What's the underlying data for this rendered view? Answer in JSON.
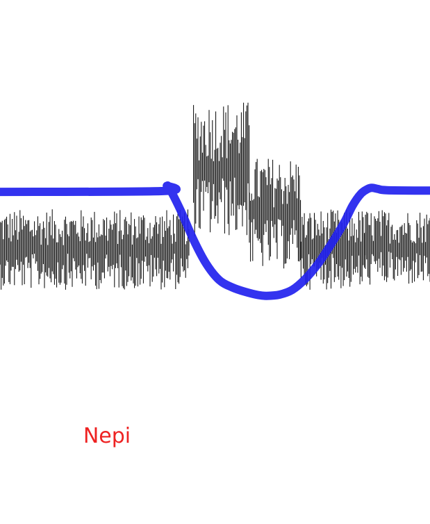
{
  "chart_data": {
    "type": "line",
    "title": "",
    "xlabel": "",
    "ylabel": "",
    "grid": false,
    "legend": "none",
    "annotation": "Nepi",
    "colors": {
      "background": "#ffffff",
      "trace": "#000000",
      "curve": "#2222ee",
      "annotation": "#ee2222"
    },
    "x_range": [
      0,
      100
    ],
    "y_range": [
      0,
      100
    ],
    "series": [
      {
        "style": "dense-vertical-trace",
        "segments": [
          {
            "x": [
              0,
              44
            ],
            "low": 35,
            "high": 55
          },
          {
            "x": [
              45,
              58
            ],
            "low": 48,
            "high": 82
          },
          {
            "x": [
              58,
              70
            ],
            "low": 40,
            "high": 68
          },
          {
            "x": [
              70,
              85
            ],
            "low": 35,
            "high": 55
          },
          {
            "x": [
              85,
              100
            ],
            "low": 36,
            "high": 55
          }
        ]
      },
      {
        "style": "smooth-curve",
        "x": [
          0,
          38,
          38.8,
          39.5,
          42,
          45,
          48,
          51,
          54,
          57,
          60,
          62,
          65,
          68,
          71,
          74,
          77,
          80,
          82,
          84,
          85.5,
          86.5,
          88,
          90,
          100
        ],
        "y": [
          59.3,
          59.5,
          60.8,
          60.0,
          54.7,
          47.4,
          41.4,
          37.4,
          35.6,
          34.5,
          33.7,
          33.5,
          33.8,
          35.0,
          37.7,
          41.5,
          46.3,
          51.6,
          55.9,
          58.9,
          60.0,
          60.3,
          60.0,
          59.7,
          59.6
        ]
      }
    ]
  }
}
